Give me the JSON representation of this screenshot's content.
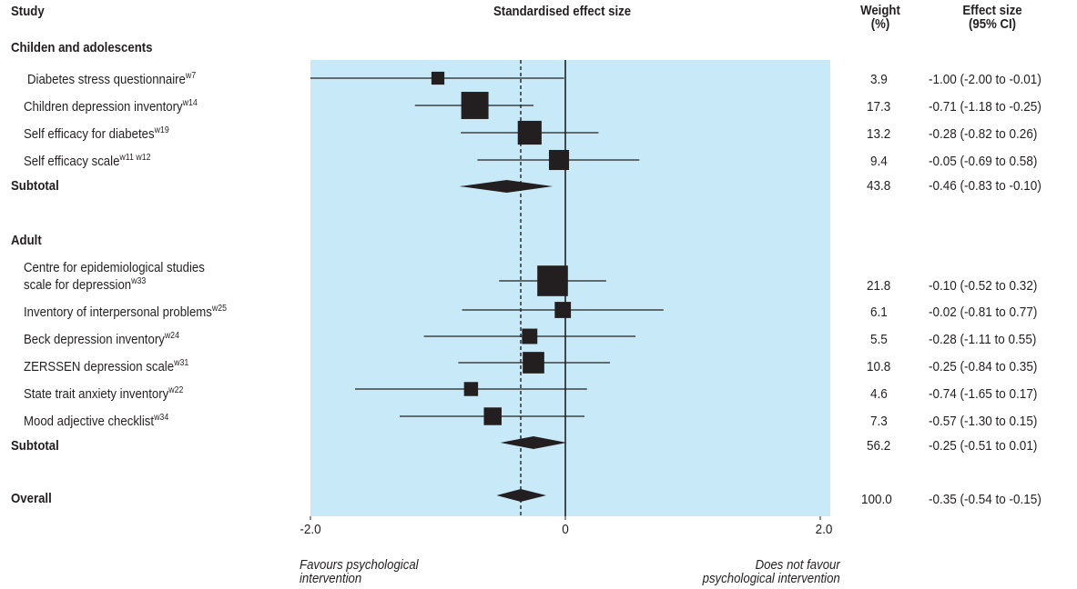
{
  "headers": {
    "study": "Study",
    "effect": "Standardised effect size",
    "weight_line1": "Weight",
    "weight_line2": "(%)",
    "ci_line1": "Effect size",
    "ci_line2": "(95% CI)"
  },
  "groups": [
    {
      "label": "Childen and adolescents",
      "subtotal_label": "Subtotal",
      "subtotal_weight": "43.8",
      "subtotal_ci": "-0.46 (-0.83 to -0.10)"
    },
    {
      "label": "Adult",
      "subtotal_label": "Subtotal",
      "subtotal_weight": "56.2",
      "subtotal_ci": "-0.25 (-0.51 to 0.01)"
    }
  ],
  "overall": {
    "label": "Overall",
    "weight": "100.0",
    "ci": "-0.35 (-0.54 to -0.15)"
  },
  "studies": [
    {
      "name": "Diabetes stress questionnaire",
      "sup": "w7",
      "weight": "3.9",
      "ci": "-1.00 (-2.00 to -0.01)"
    },
    {
      "name": "Children depression inventory",
      "sup": "w14",
      "weight": "17.3",
      "ci": "-0.71 (-1.18 to -0.25)"
    },
    {
      "name": "Self efficacy for diabetes",
      "sup": "w19",
      "weight": "13.2",
      "ci": "-0.28 (-0.82 to 0.26)"
    },
    {
      "name": "Self efficacy scale",
      "sup": "w11 w12",
      "weight": "9.4",
      "ci": "-0.05 (-0.69 to 0.58)"
    },
    {
      "name_line1": "Centre for epidemiological studies",
      "name": "scale for depression",
      "sup": "w33",
      "weight": "21.8",
      "ci": "-0.10 (-0.52 to 0.32)"
    },
    {
      "name": "Inventory of interpersonal problems",
      "sup": "w25",
      "weight": "6.1",
      "ci": "-0.02 (-0.81 to 0.77)"
    },
    {
      "name": "Beck depression inventory",
      "sup": "w24",
      "weight": "5.5",
      "ci": "-0.28 (-1.11 to 0.55)"
    },
    {
      "name": "ZERSSEN depression scale",
      "sup": "w31",
      "weight": "10.8",
      "ci": "-0.25 (-0.84 to 0.35)"
    },
    {
      "name": "State trait anxiety inventory",
      "sup": "w22",
      "weight": "4.6",
      "ci": "-0.74 (-1.65 to 0.17)"
    },
    {
      "name": "Mood adjective checklist",
      "sup": "w34",
      "weight": "7.3",
      "ci": "-0.57 (-1.30 to 0.15)"
    }
  ],
  "axis": {
    "tick_labels": [
      "-2.0",
      "0",
      "2.0"
    ],
    "left_note_line1": "Favours psychological",
    "left_note_line2": "intervention",
    "right_note_line1": "Does not favour",
    "right_note_line2": "psychological intervention"
  },
  "colors": {
    "panel": "#c8e9f8",
    "ink": "#231f20"
  },
  "chart_data": {
    "type": "forest",
    "xlim": [
      -2.0,
      2.0
    ],
    "xticks": [
      -2.0,
      0,
      2.0
    ],
    "reference_line": 0,
    "pooled_line": -0.35,
    "points": [
      {
        "study": "Diabetes stress questionnaire",
        "estimate": -1.0,
        "lower": -2.0,
        "upper": -0.01,
        "weight": 3.9
      },
      {
        "study": "Children depression inventory",
        "estimate": -0.71,
        "lower": -1.18,
        "upper": -0.25,
        "weight": 17.3
      },
      {
        "study": "Self efficacy for diabetes",
        "estimate": -0.28,
        "lower": -0.82,
        "upper": 0.26,
        "weight": 13.2
      },
      {
        "study": "Self efficacy scale",
        "estimate": -0.05,
        "lower": -0.69,
        "upper": 0.58,
        "weight": 9.4
      },
      {
        "study": "Centre for epidemiological studies scale for depression",
        "estimate": -0.1,
        "lower": -0.52,
        "upper": 0.32,
        "weight": 21.8
      },
      {
        "study": "Inventory of interpersonal problems",
        "estimate": -0.02,
        "lower": -0.81,
        "upper": 0.77,
        "weight": 6.1
      },
      {
        "study": "Beck depression inventory",
        "estimate": -0.28,
        "lower": -1.11,
        "upper": 0.55,
        "weight": 5.5
      },
      {
        "study": "ZERSSEN depression scale",
        "estimate": -0.25,
        "lower": -0.84,
        "upper": 0.35,
        "weight": 10.8
      },
      {
        "study": "State trait anxiety inventory",
        "estimate": -0.74,
        "lower": -1.65,
        "upper": 0.17,
        "weight": 4.6
      },
      {
        "study": "Mood adjective checklist",
        "estimate": -0.57,
        "lower": -1.3,
        "upper": 0.15,
        "weight": 7.3
      }
    ],
    "diamonds": [
      {
        "label": "Subtotal (children and adolescents)",
        "estimate": -0.46,
        "lower": -0.83,
        "upper": -0.1
      },
      {
        "label": "Subtotal (adult)",
        "estimate": -0.25,
        "lower": -0.51,
        "upper": 0.01
      },
      {
        "label": "Overall",
        "estimate": -0.35,
        "lower": -0.54,
        "upper": -0.15
      }
    ]
  }
}
